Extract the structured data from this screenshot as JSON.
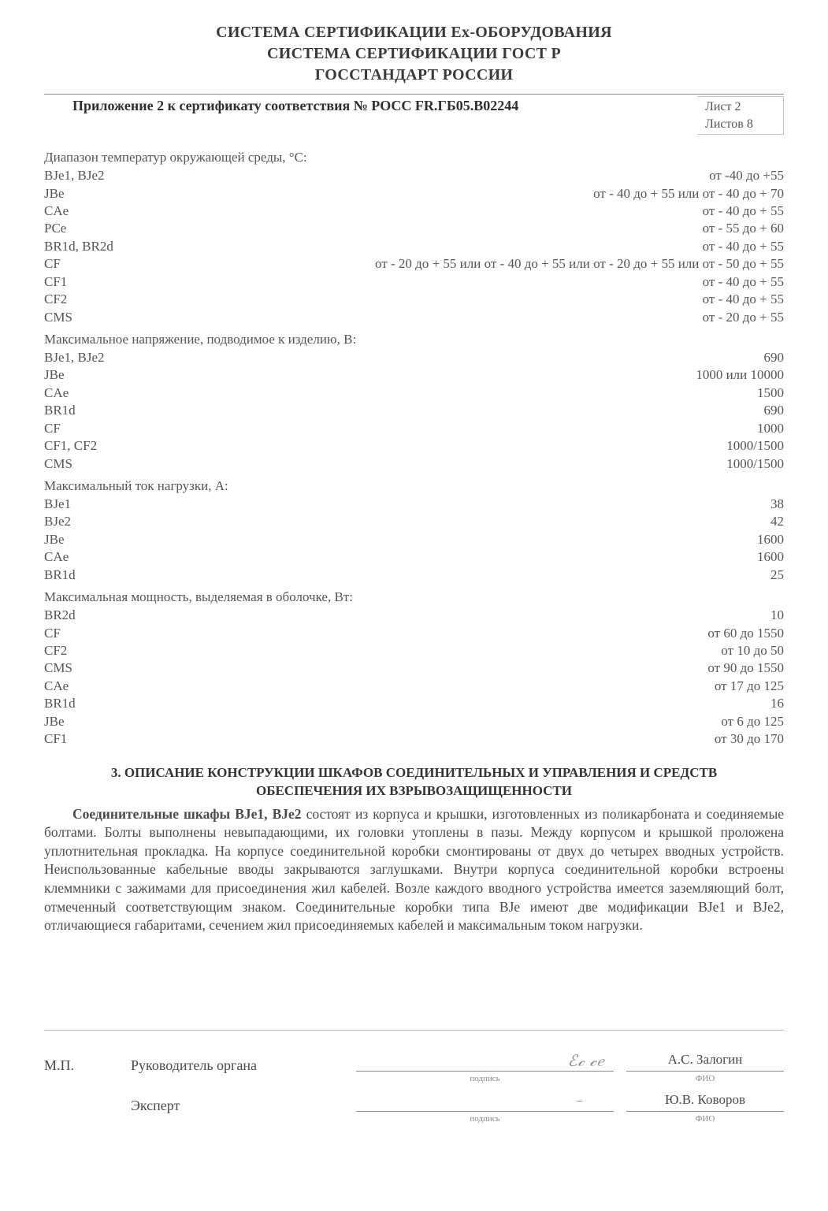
{
  "header": {
    "line1": "СИСТЕМА СЕРТИФИКАЦИИ Ех-ОБОРУДОВАНИЯ",
    "line2": "СИСТЕМА СЕРТИФИКАЦИИ ГОСТ Р",
    "line3": "ГОССТАНДАРТ РОССИИ"
  },
  "appendix": {
    "title": "Приложение 2 к сертификату соответствия № РОСС FR.ГБ05.В02244",
    "sheet": "Лист 2",
    "sheets_total": "Листов 8"
  },
  "temp": {
    "heading": "Диапазон температур окружающей среды, °С:",
    "rows": [
      {
        "k": "BJe1, BJe2",
        "v": "от -40 до +55"
      },
      {
        "k": "JBe",
        "v": "от - 40 до + 55 или от - 40 до + 70"
      },
      {
        "k": "CAe",
        "v": "от - 40 до + 55"
      },
      {
        "k": "PCe",
        "v": "от - 55 до + 60"
      },
      {
        "k": "BR1d, BR2d",
        "v": "от - 40 до + 55"
      },
      {
        "k": "CF",
        "v": "от - 20 до + 55 или от - 40 до + 55 или от - 20 до + 55 или от - 50 до + 55"
      },
      {
        "k": "CF1",
        "v": "от - 40 до + 55"
      },
      {
        "k": "CF2",
        "v": "от - 40 до + 55"
      },
      {
        "k": "CMS",
        "v": "от - 20 до + 55"
      }
    ]
  },
  "voltage": {
    "heading": "Максимальное напряжение, подводимое к изделию, В:",
    "rows": [
      {
        "k": "BJe1, BJe2",
        "v": "690"
      },
      {
        "k": "JBe",
        "v": "1000 или 10000"
      },
      {
        "k": "CAe",
        "v": "1500"
      },
      {
        "k": "BR1d",
        "v": "690"
      },
      {
        "k": "CF",
        "v": "1000"
      },
      {
        "k": "CF1, CF2",
        "v": "1000/1500"
      },
      {
        "k": "CMS",
        "v": "1000/1500"
      }
    ]
  },
  "current": {
    "heading": "Максимальный ток нагрузки, А:",
    "rows": [
      {
        "k": "BJe1",
        "v": "38"
      },
      {
        "k": "BJe2",
        "v": "42"
      },
      {
        "k": "JBe",
        "v": "1600"
      },
      {
        "k": "CAe",
        "v": "1600"
      },
      {
        "k": "BR1d",
        "v": "25"
      }
    ]
  },
  "power": {
    "heading": "Максимальная мощность, выделяемая в оболочке, Вт:",
    "rows": [
      {
        "k": "BR2d",
        "v": "10"
      },
      {
        "k": "CF",
        "v": "от 60 до 1550"
      },
      {
        "k": "CF2",
        "v": "от 10 до 50"
      },
      {
        "k": "CMS",
        "v": "от 90 до 1550"
      },
      {
        "k": "CAe",
        "v": "от 17 до 125"
      },
      {
        "k": "BR1d",
        "v": "16"
      },
      {
        "k": "JBe",
        "v": "от 6 до 125"
      },
      {
        "k": "CF1",
        "v": "от 30 до 170"
      }
    ]
  },
  "section3": {
    "title_line1": "3.   ОПИСАНИЕ КОНСТРУКЦИИ ШКАФОВ СОЕДИНИТЕЛЬНЫХ И УПРАВЛЕНИЯ И СРЕДСТВ",
    "title_line2": "ОБЕСПЕЧЕНИЯ ИХ ВЗРЫВОЗАЩИЩЕННОСТИ",
    "bold_lead": "Соединительные шкафы BJe1, BJe2",
    "para": " состоят из корпуса и крышки, изготовленных из поликарбоната и соединяемые болтами. Болты выполнены невыпадающими, их головки утоплены в пазы. Между корпусом и крышкой проложена уплотнительная прокладка. На корпусе соединительной коробки смонтированы от двух до четырех вводных устройств. Неиспользованные кабельные вводы закрываются заглушками. Внутри корпуса со­единительной коробки встроены клеммники с зажимами для присоединения жил кабелей. Возле каждого вводного устройства имеется заземляющий болт, отмеченный соответствующим знаком. Соединительные коробки типа BJe имеют две модификации BJe1 и BJe2, отличающиеся габаритами, сечением жил присоединяемых кабелей и максимальным током нагрузки."
  },
  "sign": {
    "mp": "М.П.",
    "role1": "Руководитель органа",
    "role2": "Эксперт",
    "sig_label": "подпись",
    "name1": "А.С. Залогин",
    "name2": "Ю.В. Коворов",
    "fio_label": "ФИО"
  }
}
